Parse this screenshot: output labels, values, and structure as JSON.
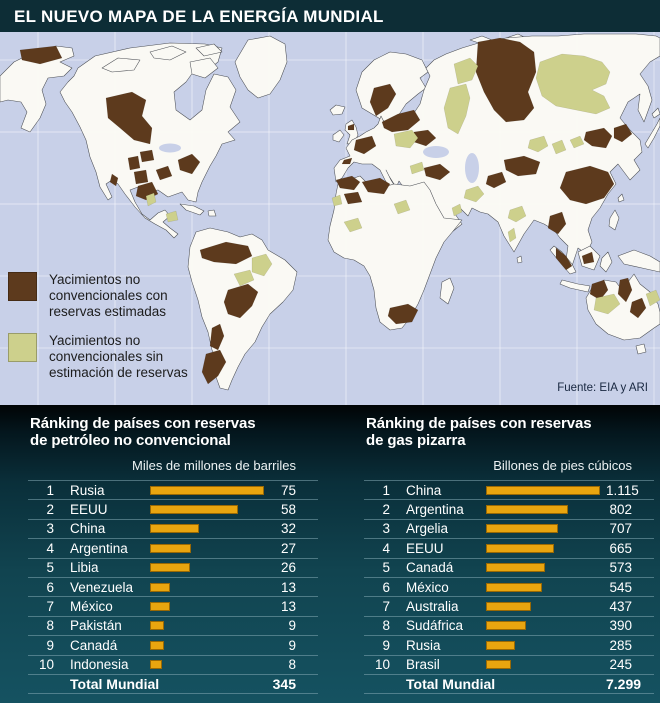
{
  "header": {
    "title": "EL NUEVO MAPA DE LA ENERGÍA MUNDIAL"
  },
  "map": {
    "legend": {
      "items": [
        {
          "label_lines": [
            "Yacimientos no",
            "convencionales con",
            "reservas estimadas"
          ]
        },
        {
          "label_lines": [
            "Yacimientos no",
            "convencionales sin",
            "estimación de reservas"
          ]
        }
      ]
    },
    "source": "Fuente: EIA y ARI",
    "colors": {
      "ocean": "#c8d0e8",
      "land": "#faf9f4",
      "estimated": "#5d3a1d",
      "unestimated": "#cdd08c"
    }
  },
  "charts": [
    {
      "id": "oil",
      "title_lines": [
        "Ránking de países con reservas",
        "de petróleo no convencional"
      ],
      "unit": "Miles de millones de barriles",
      "bar_color": "#e9a50f",
      "max_value": 75,
      "rows": [
        {
          "rank": "1",
          "name": "Rusia",
          "value": 75,
          "display": "75"
        },
        {
          "rank": "2",
          "name": "EEUU",
          "value": 58,
          "display": "58"
        },
        {
          "rank": "3",
          "name": "China",
          "value": 32,
          "display": "32"
        },
        {
          "rank": "4",
          "name": "Argentina",
          "value": 27,
          "display": "27"
        },
        {
          "rank": "5",
          "name": "Libia",
          "value": 26,
          "display": "26"
        },
        {
          "rank": "6",
          "name": "Venezuela",
          "value": 13,
          "display": "13"
        },
        {
          "rank": "7",
          "name": "México",
          "value": 13,
          "display": "13"
        },
        {
          "rank": "8",
          "name": "Pakistán",
          "value": 9,
          "display": "9"
        },
        {
          "rank": "9",
          "name": "Canadá",
          "value": 9,
          "display": "9"
        },
        {
          "rank": "10",
          "name": "Indonesia",
          "value": 8,
          "display": "8"
        }
      ],
      "total": {
        "label": "Total Mundial",
        "display": "345"
      }
    },
    {
      "id": "gas",
      "title_lines": [
        "Ránking de países con reservas",
        "de gas pizarra"
      ],
      "unit": "Billones de pies cúbicos",
      "bar_color": "#e9a50f",
      "max_value": 1115,
      "rows": [
        {
          "rank": "1",
          "name": "China",
          "value": 1115,
          "display": "1.115"
        },
        {
          "rank": "2",
          "name": "Argentina",
          "value": 802,
          "display": "802"
        },
        {
          "rank": "3",
          "name": "Argelia",
          "value": 707,
          "display": "707"
        },
        {
          "rank": "4",
          "name": "EEUU",
          "value": 665,
          "display": "665"
        },
        {
          "rank": "5",
          "name": "Canadá",
          "value": 573,
          "display": "573"
        },
        {
          "rank": "6",
          "name": "México",
          "value": 545,
          "display": "545"
        },
        {
          "rank": "7",
          "name": "Australia",
          "value": 437,
          "display": "437"
        },
        {
          "rank": "8",
          "name": "Sudáfrica",
          "value": 390,
          "display": "390"
        },
        {
          "rank": "9",
          "name": "Rusia",
          "value": 285,
          "display": "285"
        },
        {
          "rank": "10",
          "name": "Brasil",
          "value": 245,
          "display": "245"
        }
      ],
      "total": {
        "label": "Total Mundial",
        "display": "7.299"
      }
    }
  ],
  "chart_data": [
    {
      "type": "bar",
      "title": "Ránking de países con reservas de petróleo no convencional",
      "unit": "Miles de millones de barriles",
      "categories": [
        "Rusia",
        "EEUU",
        "China",
        "Argentina",
        "Libia",
        "Venezuela",
        "México",
        "Pakistán",
        "Canadá",
        "Indonesia"
      ],
      "values": [
        75,
        58,
        32,
        27,
        26,
        13,
        13,
        9,
        9,
        8
      ],
      "total": 345
    },
    {
      "type": "bar",
      "title": "Ránking de países con reservas de gas pizarra",
      "unit": "Billones de pies cúbicos",
      "categories": [
        "China",
        "Argentina",
        "Argelia",
        "EEUU",
        "Canadá",
        "México",
        "Australia",
        "Sudáfrica",
        "Rusia",
        "Brasil"
      ],
      "values": [
        1115,
        802,
        707,
        665,
        573,
        545,
        437,
        390,
        285,
        245
      ],
      "total": 7299
    }
  ]
}
